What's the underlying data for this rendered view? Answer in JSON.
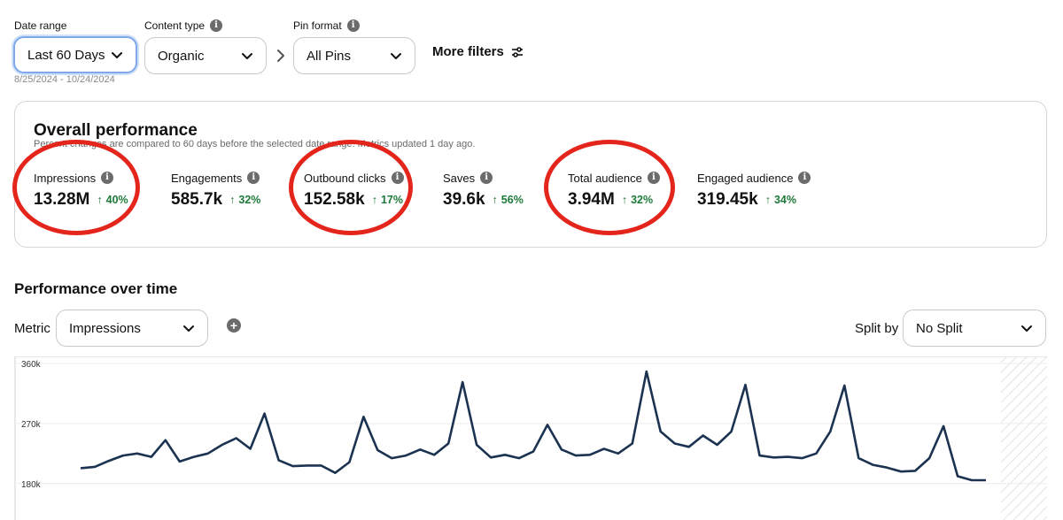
{
  "filters": {
    "date_range": {
      "label": "Date range",
      "value": "Last 60 Days",
      "sub": "8/25/2024 - 10/24/2024"
    },
    "content_type": {
      "label": "Content type",
      "value": "Organic"
    },
    "pin_format": {
      "label": "Pin format",
      "value": "All Pins"
    },
    "more_filters": "More filters"
  },
  "overall": {
    "title": "Overall performance",
    "subtitle": "Percent changes are compared to 60 days before the selected date range. Metrics updated 1 day ago.",
    "metrics": [
      {
        "label": "Impressions",
        "value": "13.28M",
        "change": "40%",
        "highlighted": true
      },
      {
        "label": "Engagements",
        "value": "585.7k",
        "change": "32%",
        "highlighted": false
      },
      {
        "label": "Outbound clicks",
        "value": "152.58k",
        "change": "17%",
        "highlighted": true
      },
      {
        "label": "Saves",
        "value": "39.6k",
        "change": "56%",
        "highlighted": false
      },
      {
        "label": "Total audience",
        "value": "3.94M",
        "change": "32%",
        "highlighted": true
      },
      {
        "label": "Engaged audience",
        "value": "319.45k",
        "change": "34%",
        "highlighted": false
      }
    ]
  },
  "performance": {
    "title": "Performance over time",
    "metric_label": "Metric",
    "metric_value": "Impressions",
    "split_label": "Split by",
    "split_value": "No Split"
  },
  "colors": {
    "line": "#1b3350",
    "positive": "#1d7a3a",
    "highlight_circle": "#e4251b",
    "focus_border": "#7fa8e8"
  },
  "chart_data": {
    "type": "line",
    "ytick_labels": [
      "360k",
      "270k",
      "180k"
    ],
    "ylim": [
      130000,
      360000
    ],
    "series": [
      {
        "values": [
          203000,
          205000,
          214000,
          222000,
          225000,
          220000,
          245000,
          213000,
          220000,
          225000,
          238000,
          248000,
          232000,
          285000,
          215000,
          206000,
          207000,
          207000,
          196000,
          212000,
          280000,
          230000,
          218000,
          222000,
          231000,
          223000,
          240000,
          332000,
          238000,
          219000,
          223000,
          218000,
          228000,
          268000,
          231000,
          222000,
          223000,
          232000,
          225000,
          240000,
          348000,
          258000,
          240000,
          235000,
          252000,
          238000,
          258000,
          328000,
          222000,
          219000,
          220000,
          218000,
          225000,
          258000,
          327000,
          218000,
          208000,
          204000,
          198000,
          199000,
          218000,
          266000,
          191000,
          185000,
          185000
        ]
      }
    ],
    "grid": true,
    "hatched_end": true
  }
}
